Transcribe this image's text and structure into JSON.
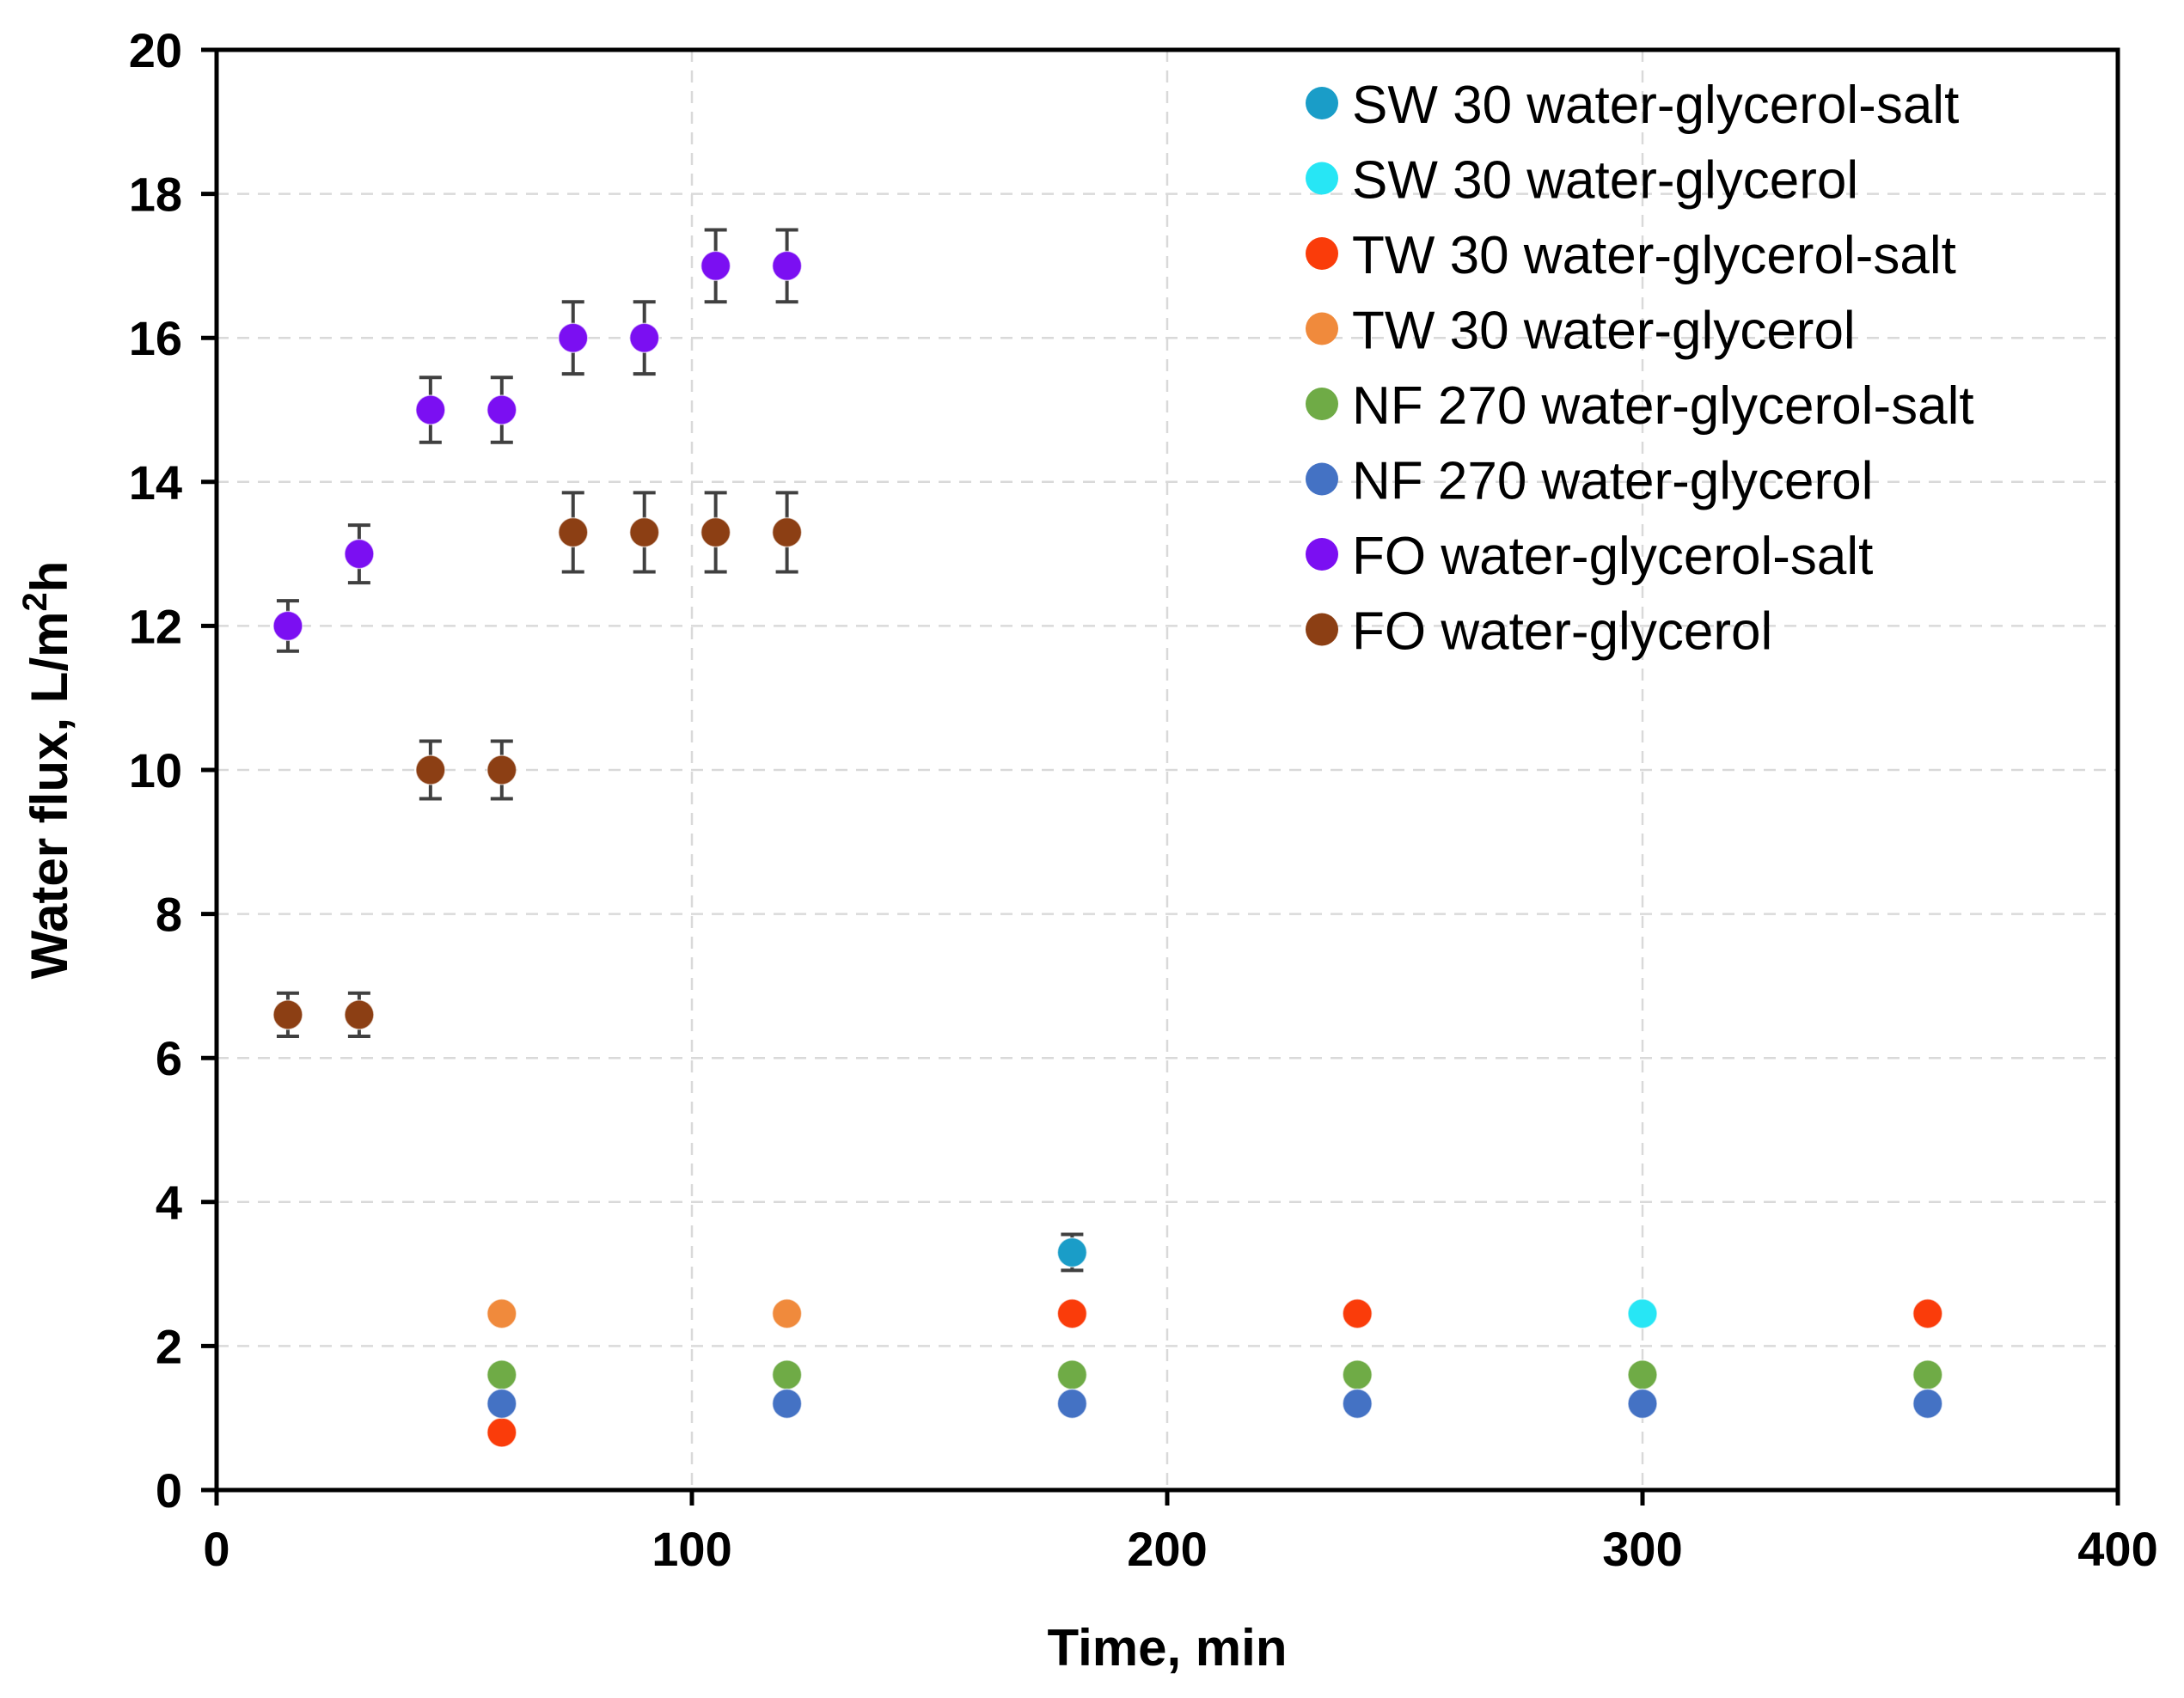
{
  "chart_data": {
    "type": "scatter",
    "title": "",
    "xlabel": "Time, min",
    "ylabel": "Water flux, L/m",
    "ylabel_superscript": "2",
    "ylabel_suffix": "h",
    "xlim": [
      0,
      400
    ],
    "ylim": [
      0,
      20
    ],
    "xticks": [
      0,
      100,
      200,
      300,
      400
    ],
    "yticks": [
      0,
      2,
      4,
      6,
      8,
      10,
      12,
      14,
      16,
      18,
      20
    ],
    "grid": true,
    "legend_position": "top-right",
    "series": [
      {
        "name": "SW 30 water-glycerol-salt",
        "color": "#1a9dc8",
        "points": [
          {
            "x": 60,
            "y": 1.6
          },
          {
            "x": 120,
            "y": 1.6
          },
          {
            "x": 180,
            "y": 3.3,
            "err": 0.25
          },
          {
            "x": 240,
            "y": 2.45
          },
          {
            "x": 300,
            "y": 2.45
          },
          {
            "x": 360,
            "y": 2.45
          }
        ]
      },
      {
        "name": "SW 30 water-glycerol",
        "color": "#27e6f5",
        "points": [
          {
            "x": 300,
            "y": 2.45
          }
        ]
      },
      {
        "name": "TW 30 water-glycerol-salt",
        "color": "#fa3c0a",
        "points": [
          {
            "x": 60,
            "y": 0.8
          },
          {
            "x": 180,
            "y": 2.45
          },
          {
            "x": 240,
            "y": 2.45
          },
          {
            "x": 360,
            "y": 2.45
          }
        ]
      },
      {
        "name": "TW 30 water-glycerol",
        "color": "#f08a3c",
        "points": [
          {
            "x": 60,
            "y": 2.45
          },
          {
            "x": 120,
            "y": 2.45
          },
          {
            "x": 240,
            "y": 1.6
          },
          {
            "x": 360,
            "y": 1.6
          }
        ]
      },
      {
        "name": "NF 270 water-glycerol-salt",
        "color": "#6fab46",
        "points": [
          {
            "x": 60,
            "y": 1.6
          },
          {
            "x": 120,
            "y": 1.6
          },
          {
            "x": 180,
            "y": 1.6
          },
          {
            "x": 240,
            "y": 1.6
          },
          {
            "x": 300,
            "y": 1.6
          },
          {
            "x": 360,
            "y": 1.6
          }
        ]
      },
      {
        "name": "NF 270 water-glycerol",
        "color": "#4472c4",
        "points": [
          {
            "x": 60,
            "y": 1.2
          },
          {
            "x": 120,
            "y": 1.2
          },
          {
            "x": 180,
            "y": 1.2
          },
          {
            "x": 240,
            "y": 1.2
          },
          {
            "x": 300,
            "y": 1.2
          },
          {
            "x": 360,
            "y": 1.2
          }
        ]
      },
      {
        "name": "FO water-glycerol-salt",
        "color": "#7b0ff2",
        "points": [
          {
            "x": 15,
            "y": 12,
            "err": 0.35
          },
          {
            "x": 30,
            "y": 13,
            "err": 0.4
          },
          {
            "x": 45,
            "y": 15,
            "err": 0.45
          },
          {
            "x": 60,
            "y": 15,
            "err": 0.45
          },
          {
            "x": 75,
            "y": 16,
            "err": 0.5
          },
          {
            "x": 90,
            "y": 16,
            "err": 0.5
          },
          {
            "x": 105,
            "y": 17,
            "err": 0.5
          },
          {
            "x": 120,
            "y": 17,
            "err": 0.5
          }
        ]
      },
      {
        "name": "FO water-glycerol",
        "color": "#8c3f14",
        "points": [
          {
            "x": 15,
            "y": 6.6,
            "err": 0.3
          },
          {
            "x": 30,
            "y": 6.6,
            "err": 0.3
          },
          {
            "x": 45,
            "y": 10,
            "err": 0.4
          },
          {
            "x": 60,
            "y": 10,
            "err": 0.4
          },
          {
            "x": 75,
            "y": 13.3,
            "err": 0.55
          },
          {
            "x": 90,
            "y": 13.3,
            "err": 0.55
          },
          {
            "x": 105,
            "y": 13.3,
            "err": 0.55
          },
          {
            "x": 120,
            "y": 13.3,
            "err": 0.55
          }
        ]
      }
    ]
  }
}
